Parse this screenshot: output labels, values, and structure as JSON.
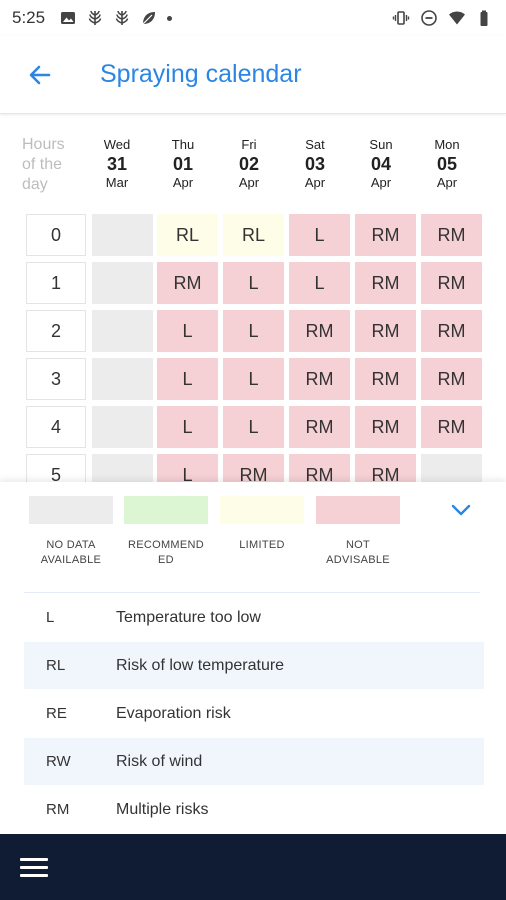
{
  "status_bar": {
    "time": "5:25",
    "left_icons": [
      "image-icon",
      "wheat-icon",
      "wheat-icon",
      "leaf-icon"
    ],
    "right_icons": [
      "vibrate-icon",
      "do-not-disturb-icon",
      "wifi-icon",
      "battery-icon"
    ]
  },
  "app_bar": {
    "title": "Spraying calendar"
  },
  "calendar": {
    "hours_label": [
      "Hours",
      "of the",
      "day"
    ],
    "days": [
      {
        "name": "Wed",
        "num": "31",
        "month": "Mar"
      },
      {
        "name": "Thu",
        "num": "01",
        "month": "Apr"
      },
      {
        "name": "Fri",
        "num": "02",
        "month": "Apr"
      },
      {
        "name": "Sat",
        "num": "03",
        "month": "Apr"
      },
      {
        "name": "Sun",
        "num": "04",
        "month": "Apr"
      },
      {
        "name": "Mon",
        "num": "05",
        "month": "Apr"
      }
    ],
    "rows": [
      {
        "hour": "0",
        "cells": [
          {
            "v": "",
            "s": "nodata"
          },
          {
            "v": "RL",
            "s": "limited"
          },
          {
            "v": "RL",
            "s": "limited"
          },
          {
            "v": "L",
            "s": "not"
          },
          {
            "v": "RM",
            "s": "not"
          },
          {
            "v": "RM",
            "s": "not"
          }
        ]
      },
      {
        "hour": "1",
        "cells": [
          {
            "v": "",
            "s": "nodata"
          },
          {
            "v": "RM",
            "s": "not"
          },
          {
            "v": "L",
            "s": "not"
          },
          {
            "v": "L",
            "s": "not"
          },
          {
            "v": "RM",
            "s": "not"
          },
          {
            "v": "RM",
            "s": "not"
          }
        ]
      },
      {
        "hour": "2",
        "cells": [
          {
            "v": "",
            "s": "nodata"
          },
          {
            "v": "L",
            "s": "not"
          },
          {
            "v": "L",
            "s": "not"
          },
          {
            "v": "RM",
            "s": "not"
          },
          {
            "v": "RM",
            "s": "not"
          },
          {
            "v": "RM",
            "s": "not"
          }
        ]
      },
      {
        "hour": "3",
        "cells": [
          {
            "v": "",
            "s": "nodata"
          },
          {
            "v": "L",
            "s": "not"
          },
          {
            "v": "L",
            "s": "not"
          },
          {
            "v": "RM",
            "s": "not"
          },
          {
            "v": "RM",
            "s": "not"
          },
          {
            "v": "RM",
            "s": "not"
          }
        ]
      },
      {
        "hour": "4",
        "cells": [
          {
            "v": "",
            "s": "nodata"
          },
          {
            "v": "L",
            "s": "not"
          },
          {
            "v": "L",
            "s": "not"
          },
          {
            "v": "RM",
            "s": "not"
          },
          {
            "v": "RM",
            "s": "not"
          },
          {
            "v": "RM",
            "s": "not"
          }
        ]
      },
      {
        "hour": "5",
        "cells": [
          {
            "v": "",
            "s": "nodata"
          },
          {
            "v": "L",
            "s": "not"
          },
          {
            "v": "RM",
            "s": "not"
          },
          {
            "v": "RM",
            "s": "not"
          },
          {
            "v": "RM",
            "s": "not"
          },
          {
            "v": "",
            "s": "nodata"
          }
        ]
      }
    ]
  },
  "colors": {
    "nodata": "#ececec",
    "recommended": "#dcf6d3",
    "limited": "#fdfde8",
    "not": "#f5d0d4",
    "accent": "#2b86e3",
    "bottom_bar": "#0f1c33"
  },
  "legend": {
    "items": [
      {
        "key": "nodata",
        "label": [
          "NO DATA",
          "AVAILABLE"
        ]
      },
      {
        "key": "recommended",
        "label": [
          "RECOMMEND",
          "ED"
        ]
      },
      {
        "key": "limited",
        "label": [
          "LIMITED"
        ]
      },
      {
        "key": "not",
        "label": [
          "NOT",
          "ADVISABLE"
        ]
      }
    ]
  },
  "abbreviations": [
    {
      "code": "L",
      "desc": "Temperature too low"
    },
    {
      "code": "RL",
      "desc": "Risk of low temperature"
    },
    {
      "code": "RE",
      "desc": "Evaporation risk"
    },
    {
      "code": "RW",
      "desc": "Risk of wind"
    },
    {
      "code": "RM",
      "desc": "Multiple risks"
    }
  ]
}
